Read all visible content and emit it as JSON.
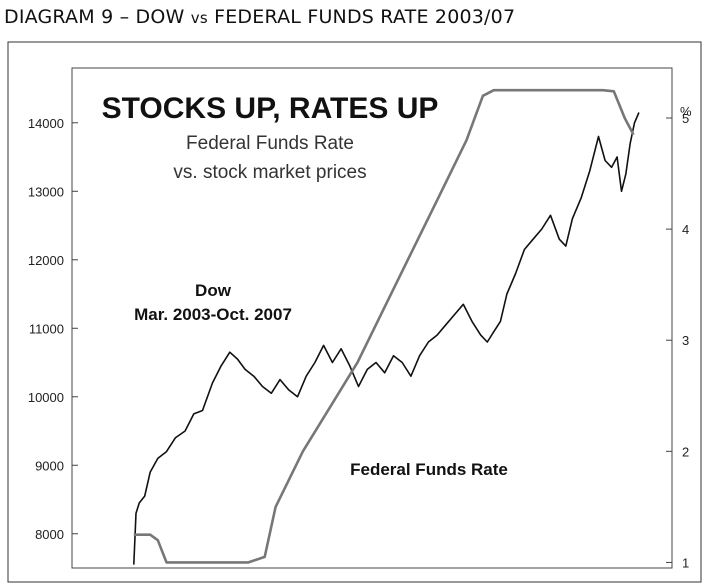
{
  "caption": {
    "prefix": "DIAGRAM 9 – DOW ",
    "vs": "vs",
    "suffix": " FEDERAL FUNDS RATE 2003/07"
  },
  "chart_data": {
    "type": "line",
    "title": "STOCKS UP, RATES UP",
    "subtitle_line1": "Federal Funds Rate",
    "subtitle_line2": "vs. stock market prices",
    "dow_label_line1": "Dow",
    "dow_label_line2": "Mar. 2003-Oct. 2007",
    "fed_label": "Federal Funds Rate",
    "left_axis": {
      "ticks": [
        "14000",
        "13000",
        "12000",
        "11000",
        "10000",
        "9000",
        "8000"
      ],
      "values": [
        14000,
        13000,
        12000,
        11000,
        10000,
        9000,
        8000
      ],
      "ylim": [
        7500,
        14800
      ]
    },
    "right_axis": {
      "unit": "%",
      "ticks": [
        "5",
        "4",
        "3",
        "2",
        "1"
      ],
      "values": [
        5,
        4,
        3,
        2,
        1
      ],
      "ylim": [
        0.95,
        5.45
      ]
    },
    "x": [
      2003.2,
      2003.5,
      2003.8,
      2004.0,
      2004.3,
      2004.5,
      2004.7,
      2005.0,
      2005.3,
      2005.5,
      2005.7,
      2006.0,
      2006.2,
      2006.5,
      2006.6,
      2006.8,
      2007.0,
      2007.2,
      2007.4,
      2007.5,
      2007.6,
      2007.7,
      2007.8
    ],
    "series": [
      {
        "name": "Dow",
        "color": "#111111",
        "x": [
          2003.2,
          2003.22,
          2003.25,
          2003.3,
          2003.35,
          2003.42,
          2003.5,
          2003.58,
          2003.67,
          2003.75,
          2003.83,
          2003.92,
          2004.0,
          2004.08,
          2004.15,
          2004.22,
          2004.3,
          2004.38,
          2004.46,
          2004.54,
          2004.62,
          2004.7,
          2004.78,
          2004.86,
          2004.94,
          2005.02,
          2005.1,
          2005.18,
          2005.26,
          2005.34,
          2005.42,
          2005.5,
          2005.58,
          2005.66,
          2005.74,
          2005.82,
          2005.9,
          2005.98,
          2006.06,
          2006.14,
          2006.22,
          2006.3,
          2006.38,
          2006.44,
          2006.5,
          2006.56,
          2006.62,
          2006.7,
          2006.78,
          2006.86,
          2006.94,
          2007.02,
          2007.1,
          2007.16,
          2007.22,
          2007.3,
          2007.38,
          2007.46,
          2007.52,
          2007.58,
          2007.63,
          2007.67,
          2007.71,
          2007.75,
          2007.79,
          2007.83
        ],
        "values": [
          7550,
          8300,
          8450,
          8550,
          8900,
          9100,
          9200,
          9400,
          9500,
          9750,
          9800,
          10200,
          10450,
          10650,
          10550,
          10400,
          10300,
          10150,
          10050,
          10250,
          10100,
          10000,
          10300,
          10500,
          10750,
          10500,
          10700,
          10450,
          10150,
          10400,
          10500,
          10350,
          10600,
          10500,
          10300,
          10600,
          10800,
          10900,
          11050,
          11200,
          11350,
          11100,
          10900,
          10800,
          10950,
          11100,
          11500,
          11800,
          12150,
          12300,
          12450,
          12650,
          12300,
          12200,
          12600,
          12900,
          13300,
          13800,
          13450,
          13350,
          13500,
          13000,
          13250,
          13700,
          14000,
          14150
        ]
      },
      {
        "name": "Federal Funds Rate",
        "color": "#777777",
        "x": [
          2003.2,
          2003.35,
          2003.42,
          2003.5,
          2003.75,
          2004.0,
          2004.25,
          2004.4,
          2004.5,
          2004.75,
          2005.0,
          2005.25,
          2005.5,
          2005.75,
          2006.0,
          2006.25,
          2006.4,
          2006.5,
          2006.75,
          2007.0,
          2007.25,
          2007.5,
          2007.6,
          2007.7,
          2007.78
        ],
        "values": [
          1.25,
          1.25,
          1.2,
          1.0,
          1.0,
          1.0,
          1.0,
          1.05,
          1.5,
          2.0,
          2.4,
          2.8,
          3.3,
          3.8,
          4.3,
          4.8,
          5.2,
          5.25,
          5.25,
          5.25,
          5.25,
          5.25,
          5.24,
          5.0,
          4.85
        ]
      }
    ],
    "xlim": [
      2003.0,
      2007.95
    ],
    "grid": false,
    "legend": "none"
  }
}
